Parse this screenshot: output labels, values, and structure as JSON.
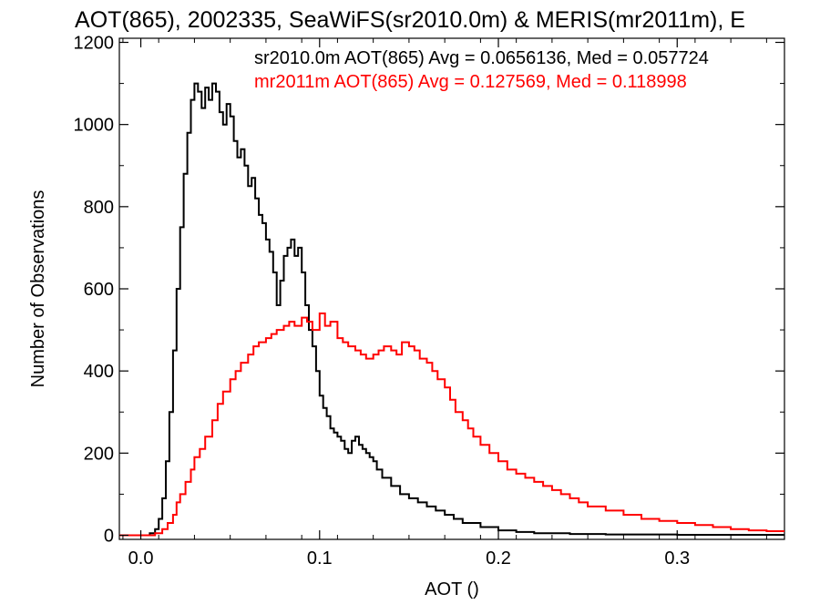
{
  "chart_data": {
    "type": "line",
    "title": "AOT(865), 2002335, SeaWiFS(sr2010.0m) & MERIS(mr2011m), E",
    "xlabel": "AOT ()",
    "ylabel": "Number of Observations",
    "xlim": [
      -0.012,
      0.36
    ],
    "ylim": [
      -10,
      1210
    ],
    "x_ticks": [
      0.0,
      0.1,
      0.2,
      0.3
    ],
    "x_tick_labels": [
      "0.0",
      "0.1",
      "0.2",
      "0.3"
    ],
    "y_ticks": [
      0,
      200,
      400,
      600,
      800,
      1000,
      1200
    ],
    "y_tick_labels": [
      "0",
      "200",
      "400",
      "600",
      "800",
      "1000",
      "1200"
    ],
    "grid": false,
    "step": true,
    "series": [
      {
        "name": "sr2010.0m",
        "annotation": "sr2010.0m AOT(865) Avg = 0.0656136, Med = 0.057724",
        "color": "#000000",
        "x": [
          -0.012,
          0.0,
          0.005,
          0.008,
          0.01,
          0.012,
          0.014,
          0.016,
          0.018,
          0.02,
          0.022,
          0.024,
          0.026,
          0.028,
          0.03,
          0.032,
          0.034,
          0.036,
          0.038,
          0.04,
          0.042,
          0.044,
          0.046,
          0.048,
          0.05,
          0.052,
          0.054,
          0.056,
          0.058,
          0.06,
          0.062,
          0.064,
          0.066,
          0.068,
          0.07,
          0.072,
          0.074,
          0.076,
          0.078,
          0.08,
          0.082,
          0.084,
          0.086,
          0.088,
          0.09,
          0.092,
          0.094,
          0.096,
          0.098,
          0.1,
          0.102,
          0.104,
          0.106,
          0.108,
          0.11,
          0.112,
          0.114,
          0.116,
          0.118,
          0.12,
          0.122,
          0.124,
          0.126,
          0.128,
          0.13,
          0.132,
          0.135,
          0.14,
          0.145,
          0.15,
          0.155,
          0.16,
          0.165,
          0.17,
          0.175,
          0.18,
          0.19,
          0.2,
          0.21,
          0.22,
          0.24,
          0.26,
          0.3,
          0.36
        ],
        "values": [
          0,
          0,
          5,
          15,
          40,
          90,
          180,
          300,
          450,
          600,
          750,
          880,
          980,
          1060,
          1100,
          1080,
          1040,
          1090,
          1060,
          1100,
          1080,
          1030,
          1000,
          1050,
          1020,
          960,
          920,
          940,
          900,
          850,
          870,
          820,
          780,
          760,
          720,
          690,
          640,
          560,
          620,
          680,
          700,
          720,
          680,
          700,
          640,
          560,
          500,
          460,
          400,
          340,
          310,
          290,
          260,
          250,
          240,
          230,
          210,
          200,
          230,
          240,
          220,
          210,
          200,
          190,
          180,
          160,
          140,
          120,
          100,
          90,
          80,
          70,
          60,
          50,
          40,
          30,
          20,
          12,
          8,
          5,
          3,
          2,
          1,
          0
        ]
      },
      {
        "name": "mr2011m",
        "annotation": "mr2011m AOT(865) Avg = 0.127569, Med = 0.118998",
        "color": "#ff0000",
        "x": [
          -0.012,
          0.008,
          0.012,
          0.015,
          0.018,
          0.02,
          0.022,
          0.025,
          0.028,
          0.03,
          0.033,
          0.036,
          0.04,
          0.043,
          0.046,
          0.05,
          0.053,
          0.056,
          0.06,
          0.063,
          0.066,
          0.07,
          0.073,
          0.076,
          0.08,
          0.083,
          0.086,
          0.09,
          0.093,
          0.096,
          0.1,
          0.103,
          0.106,
          0.11,
          0.113,
          0.116,
          0.12,
          0.123,
          0.126,
          0.13,
          0.133,
          0.136,
          0.14,
          0.143,
          0.146,
          0.15,
          0.153,
          0.156,
          0.16,
          0.163,
          0.166,
          0.17,
          0.173,
          0.176,
          0.18,
          0.183,
          0.186,
          0.19,
          0.195,
          0.2,
          0.205,
          0.21,
          0.215,
          0.22,
          0.225,
          0.23,
          0.235,
          0.24,
          0.245,
          0.25,
          0.26,
          0.27,
          0.28,
          0.29,
          0.3,
          0.31,
          0.32,
          0.33,
          0.34,
          0.35,
          0.36
        ],
        "values": [
          0,
          5,
          15,
          30,
          50,
          80,
          100,
          130,
          160,
          190,
          210,
          240,
          280,
          320,
          350,
          380,
          400,
          420,
          440,
          460,
          470,
          480,
          490,
          500,
          510,
          520,
          510,
          530,
          520,
          500,
          540,
          510,
          520,
          480,
          470,
          460,
          450,
          440,
          430,
          440,
          450,
          460,
          450,
          440,
          470,
          460,
          450,
          430,
          420,
          400,
          380,
          360,
          330,
          300,
          280,
          260,
          240,
          220,
          200,
          180,
          160,
          150,
          140,
          130,
          120,
          110,
          100,
          90,
          80,
          70,
          60,
          50,
          40,
          35,
          30,
          25,
          20,
          15,
          12,
          10,
          8
        ]
      }
    ]
  }
}
